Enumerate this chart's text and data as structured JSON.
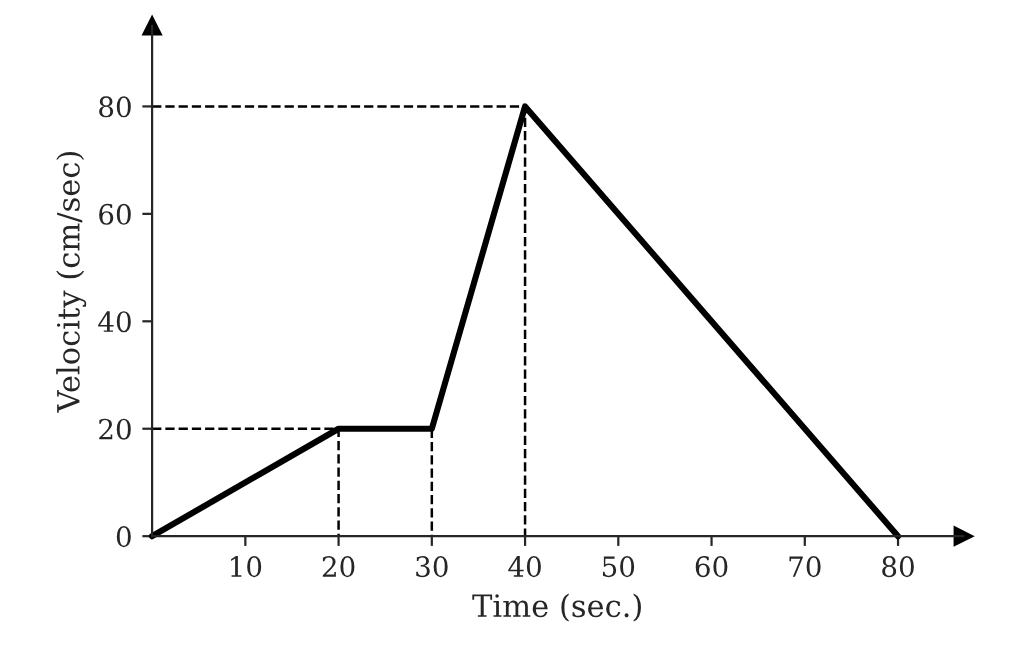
{
  "chart_data": {
    "type": "line",
    "xlabel": "Time (sec.)",
    "ylabel": "Velocity (cm/sec)",
    "xlim": [
      0,
      87
    ],
    "ylim": [
      0,
      95
    ],
    "xticks": [
      10,
      20,
      30,
      40,
      50,
      60,
      70,
      80
    ],
    "yticks": [
      0,
      20,
      40,
      60,
      80
    ],
    "grid": false,
    "marker": "none",
    "series": [
      {
        "color": "#000000",
        "line_style": "solid",
        "x": [
          0,
          20,
          30,
          40,
          80
        ],
        "values": [
          0,
          20,
          20,
          80,
          0
        ]
      },
      {
        "color": "#000000",
        "line_style": "dashed",
        "x": [
          0,
          20,
          20
        ],
        "values": [
          20,
          20,
          0
        ]
      },
      {
        "color": "#000000",
        "line_style": "dashed",
        "x": [
          30,
          30
        ],
        "values": [
          20,
          0
        ]
      },
      {
        "color": "#000000",
        "line_style": "dashed",
        "x": [
          0,
          40,
          40
        ],
        "values": [
          80,
          80,
          0
        ]
      }
    ]
  }
}
